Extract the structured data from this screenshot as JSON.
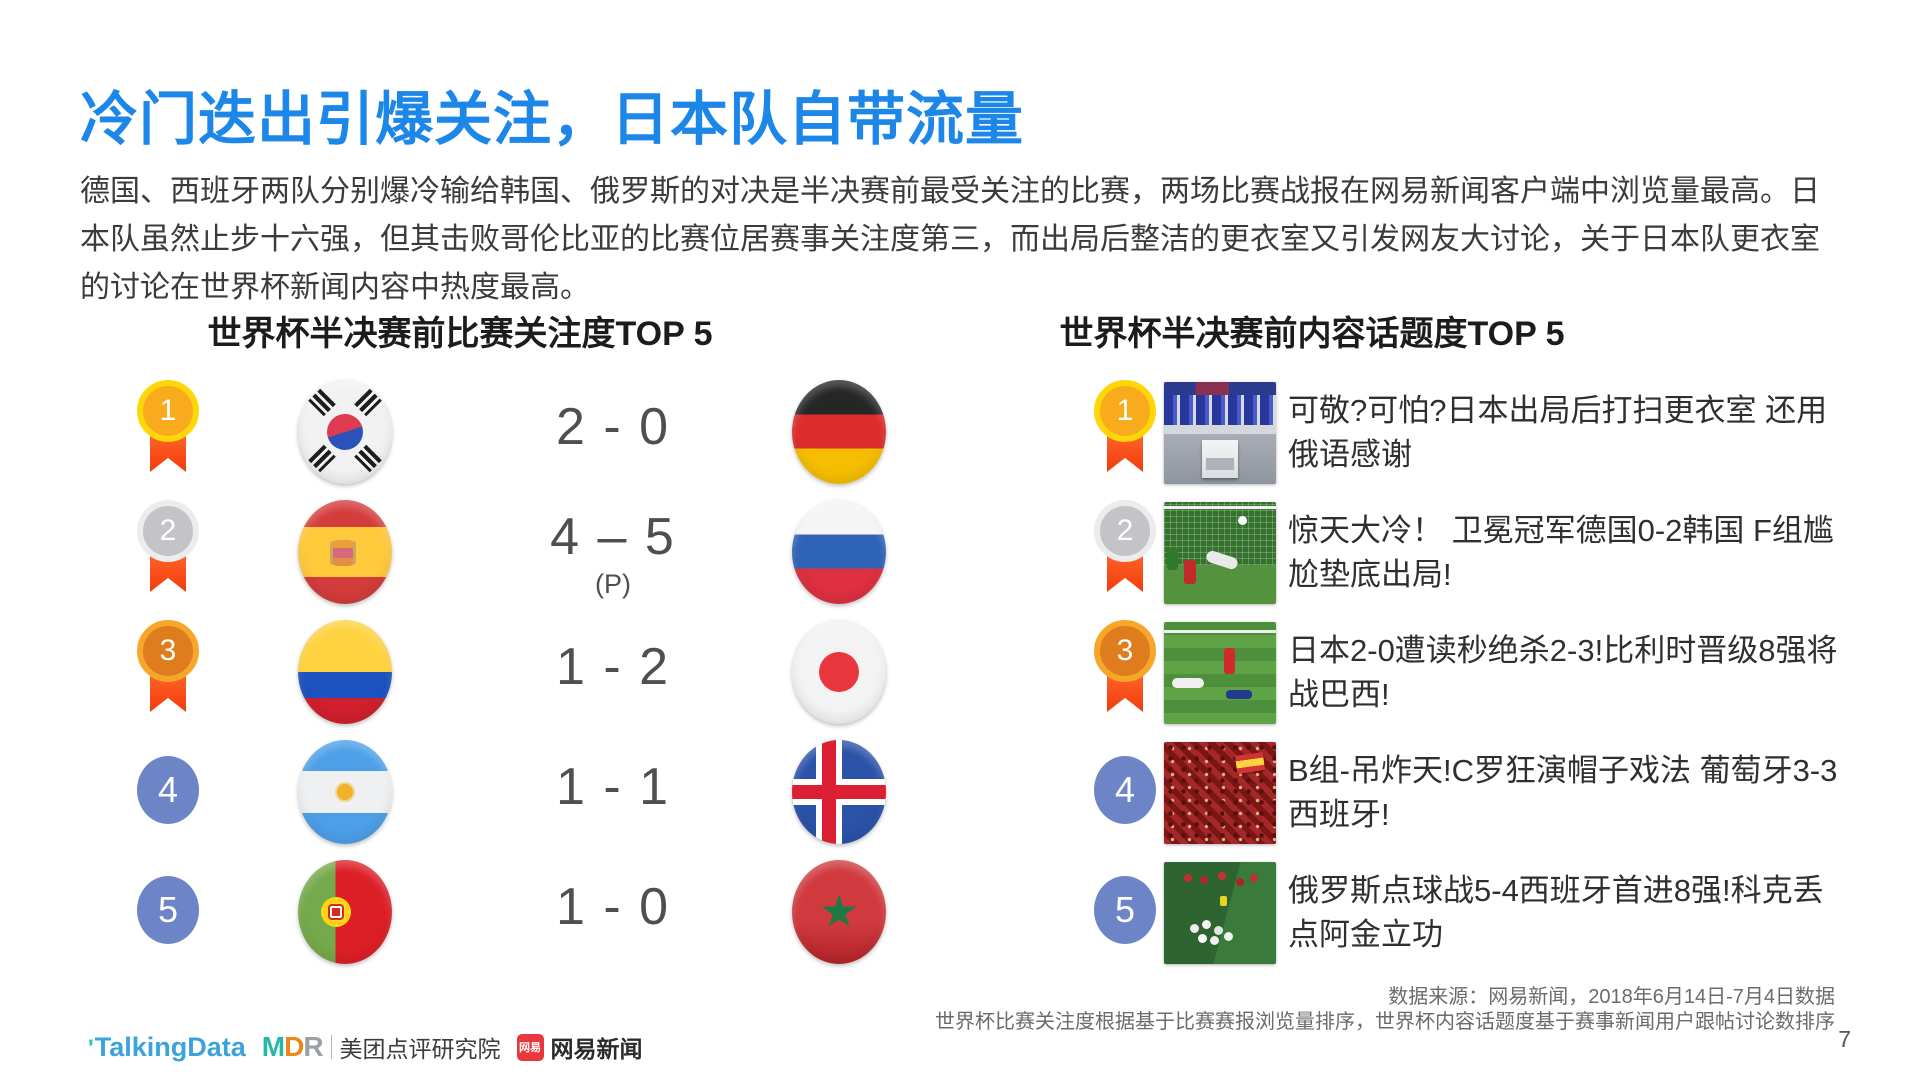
{
  "slide": {
    "title": "冷门迭出引爆关注，日本队自带流量",
    "intro": "德国、西班牙两队分别爆冷输给韩国、俄罗斯的对决是半决赛前最受关注的比赛，两场比赛战报在网易新闻客户端中浏览量最高。日本队虽然止步十六强，但其击败哥伦比亚的比赛位居赛事关注度第三，而出局后整洁的更衣室又引发网友大讨论，关于日本队更衣室的讨论在世界杯新闻内容中热度最高。",
    "page_number": "7"
  },
  "match_panel": {
    "title": "世界杯半决赛前比赛关注度TOP 5",
    "rows": [
      {
        "rank": "1",
        "medal": "gold",
        "home_team": "South Korea",
        "score": "2 - 0",
        "score_note": "",
        "away_team": "Germany"
      },
      {
        "rank": "2",
        "medal": "silver",
        "home_team": "Spain",
        "score": "4 – 5",
        "score_note": "(P)",
        "away_team": "Russia"
      },
      {
        "rank": "3",
        "medal": "bronze",
        "home_team": "Colombia",
        "score": "1 - 2",
        "score_note": "",
        "away_team": "Japan"
      },
      {
        "rank": "4",
        "medal": "plain",
        "home_team": "Argentina",
        "score": "1 - 1",
        "score_note": "",
        "away_team": "Iceland"
      },
      {
        "rank": "5",
        "medal": "plain",
        "home_team": "Portugal",
        "score": "1 - 0",
        "score_note": "",
        "away_team": "Morocco"
      }
    ]
  },
  "content_panel": {
    "title": "世界杯半决赛前内容话题度TOP 5",
    "rows": [
      {
        "rank": "1",
        "medal": "gold",
        "image": "japan-clean-locker-room",
        "headline": "可敬?可怕?日本出局后打扫更衣室 还用俄语感谢"
      },
      {
        "rank": "2",
        "medal": "silver",
        "image": "germany-korea-goal",
        "headline": "惊天大冷！ 卫冕冠军德国0-2韩国 F组尴尬垫底出局!"
      },
      {
        "rank": "3",
        "medal": "bronze",
        "image": "japan-belgium-heartbreak",
        "headline": "日本2-0遭读秒绝杀2-3!比利时晋级8强将战巴西!"
      },
      {
        "rank": "4",
        "medal": "plain",
        "image": "portugal-spain-fans",
        "headline": "B组-吊炸天!C罗狂演帽子戏法 葡萄牙3-3西班牙!"
      },
      {
        "rank": "5",
        "medal": "plain",
        "image": "russia-spain-penalties",
        "headline": "俄罗斯点球战5-4西班牙首进8强!科克丢点阿金立功"
      }
    ]
  },
  "footer": {
    "source_line1": "数据来源：网易新闻，2018年6月14日-7月4日数据",
    "source_line2": "世界杯比赛关注度根据基于比赛赛报浏览量排序，世界杯内容话题度基于赛事新闻用户跟帖讨论数排序",
    "logos": {
      "talkingdata": "TalkingData",
      "mdr_m": "M",
      "mdr_d": "D",
      "mdr_r": "R",
      "mdr_label": "美团点评研究院",
      "netease_badge": "网易",
      "netease_label": "网易新闻"
    }
  },
  "colors": {
    "title_blue": "#1d87e9",
    "ribbon_orange": "#ff4e1e",
    "medal_gold": "#f8ac1d",
    "medal_silver": "#c4c4c8",
    "medal_bronze": "#df7d1e",
    "rank_blue": "#6d84c6"
  }
}
